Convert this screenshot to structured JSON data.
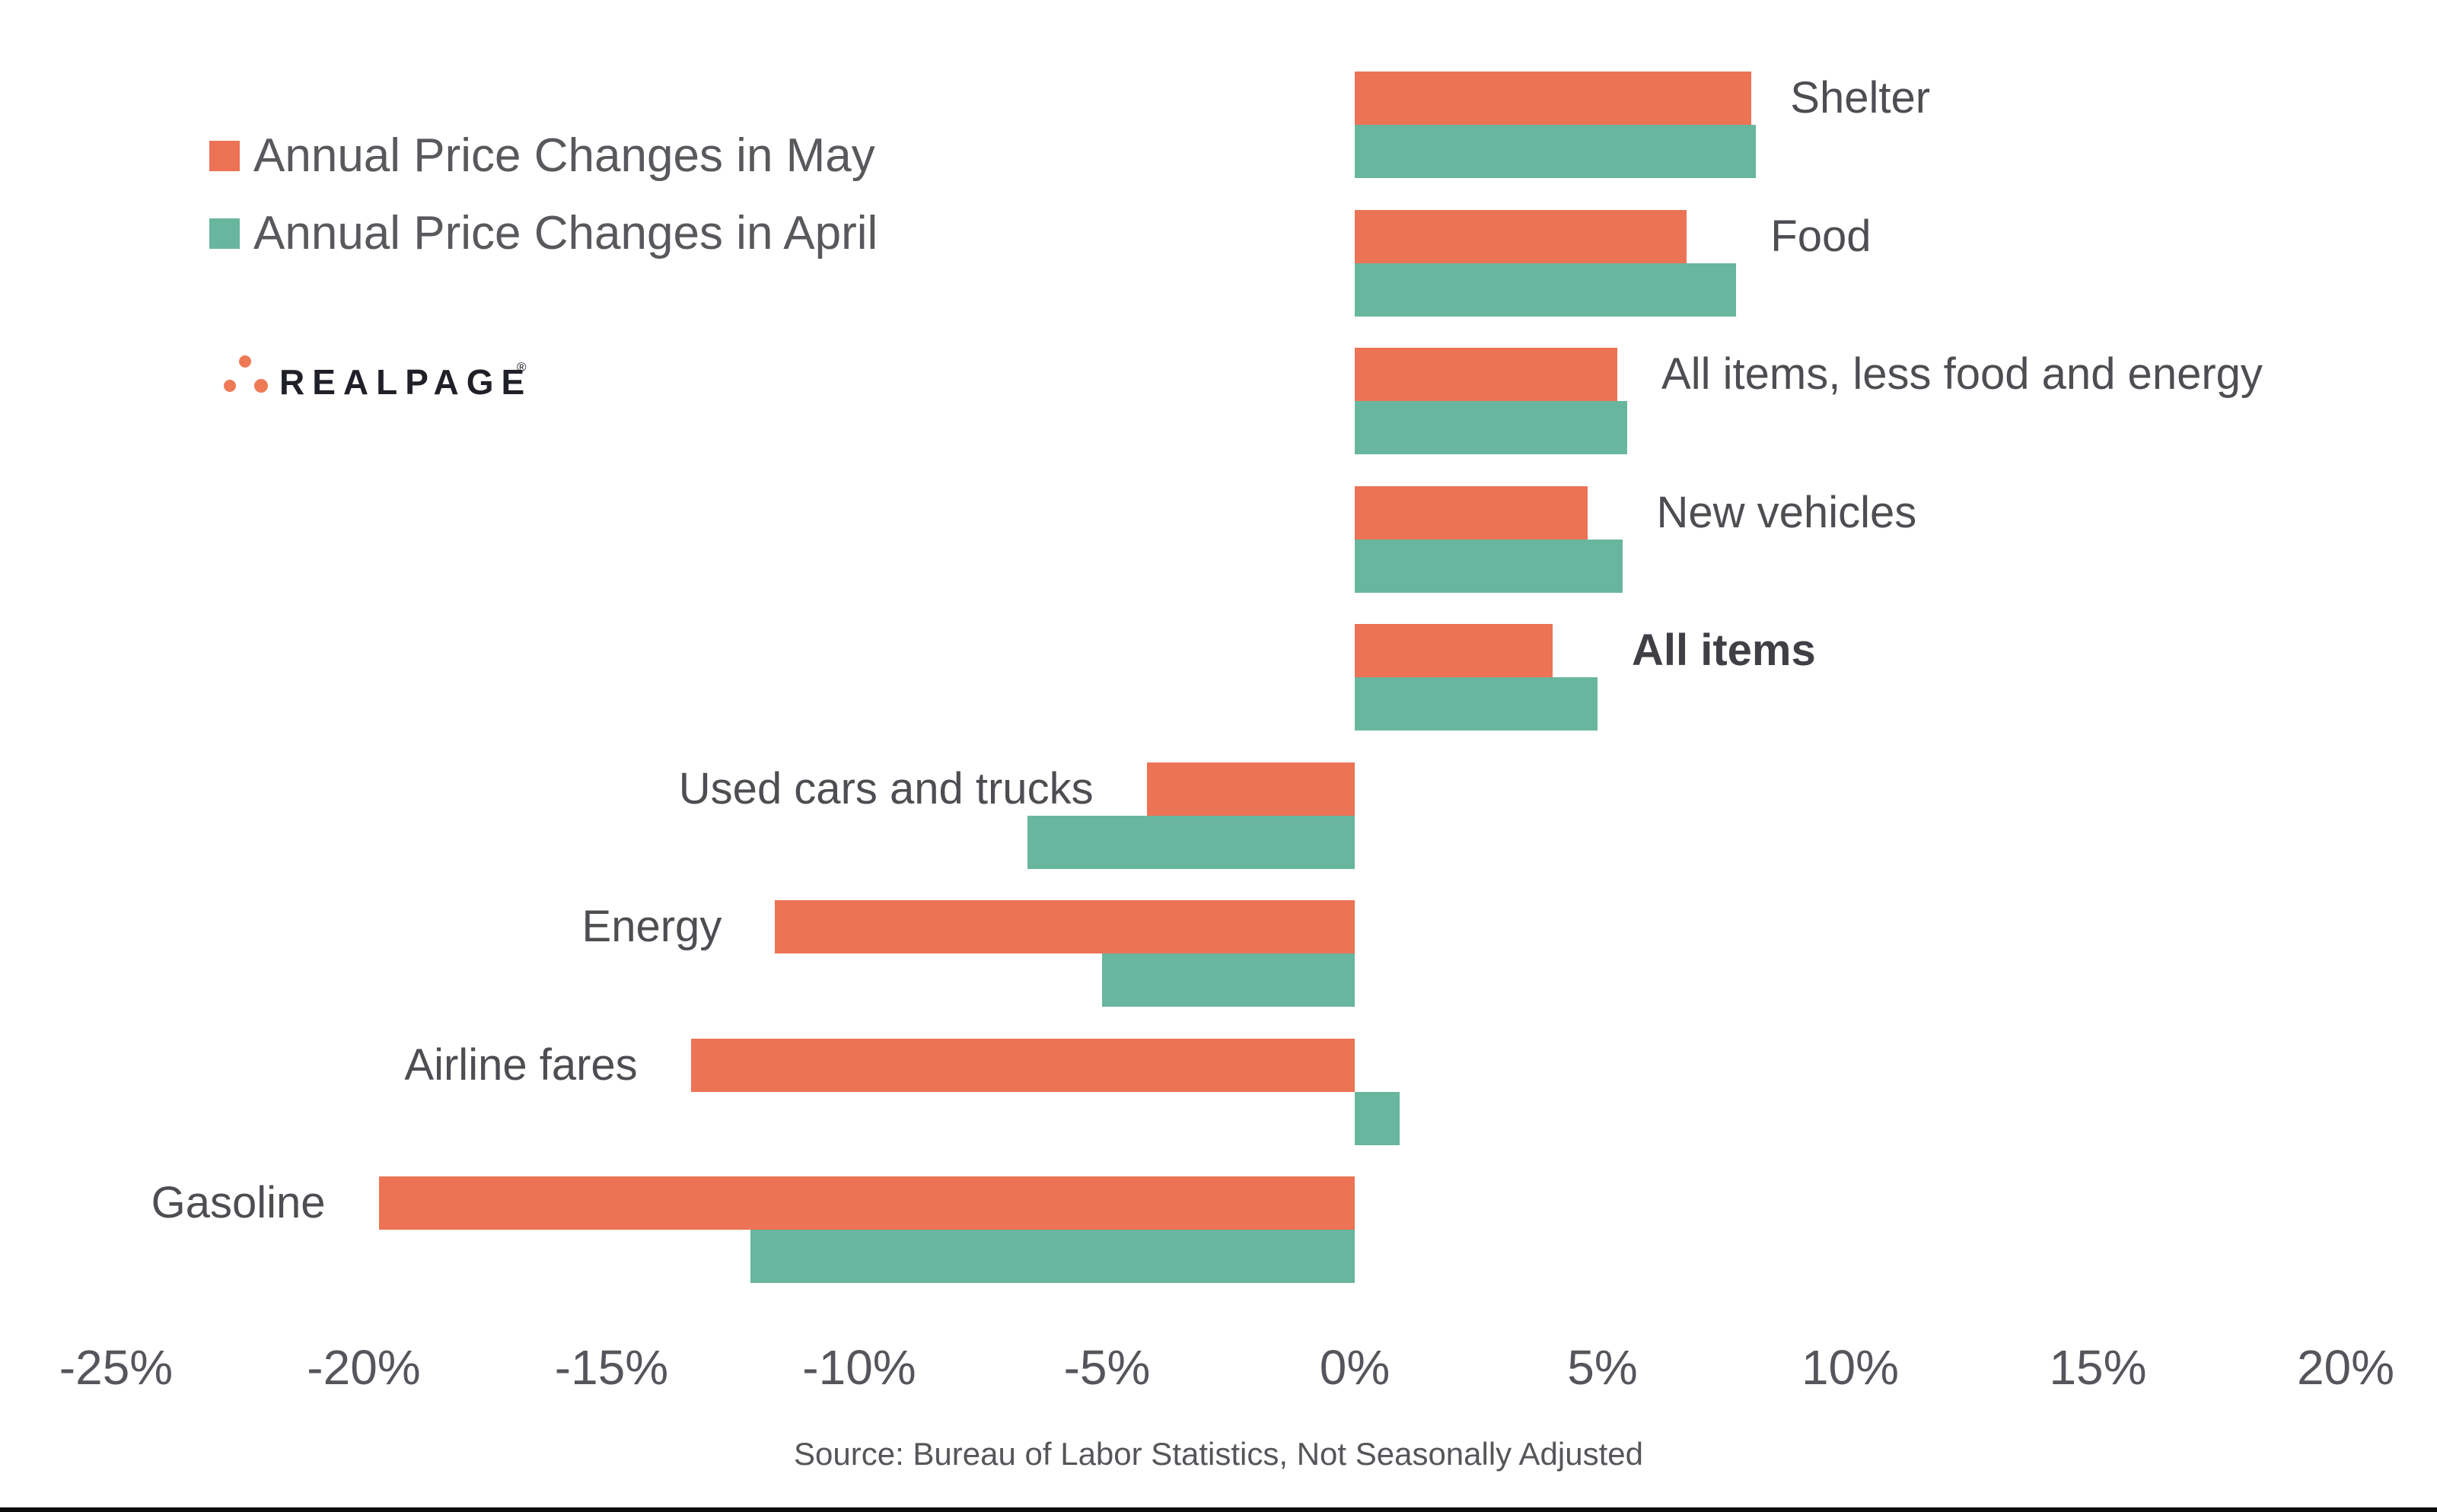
{
  "legend": {
    "items": [
      {
        "label": "Annual Price Changes in May",
        "color": "#EC7355"
      },
      {
        "label": "Annual Price Changes in April",
        "color": "#68B69E"
      }
    ]
  },
  "logo": {
    "text": "REALPAGE",
    "registered_mark": "®",
    "dot_color": "#ED7A55",
    "text_color": "#1F2028"
  },
  "source_note": "Source: Bureau of Labor Statistics, Not Seasonally Adjusted",
  "chart_data": {
    "type": "bar",
    "orientation": "horizontal",
    "title": "",
    "xlabel": "",
    "ylabel": "",
    "xlim": [
      -25,
      20
    ],
    "gridlines": false,
    "legend_position": "top-left",
    "categories": [
      "Shelter",
      "Food",
      "All items, less food and energy",
      "New vehicles",
      "All items",
      "Used cars and trucks",
      "Energy",
      "Airline fares",
      "Gasoline"
    ],
    "bold_category": "All items",
    "series": [
      {
        "name": "Annual Price Changes in May",
        "color": "#EC7355",
        "values": [
          8.0,
          6.7,
          5.3,
          4.7,
          4.0,
          -4.2,
          -11.7,
          -13.4,
          -19.7
        ]
      },
      {
        "name": "Annual Price Changes in April",
        "color": "#68B69E",
        "values": [
          8.1,
          7.7,
          5.5,
          5.4,
          4.9,
          -6.6,
          -5.1,
          0.9,
          -12.2
        ]
      }
    ],
    "x_tick_labels": [
      "-25%",
      "-20%",
      "-15%",
      "-10%",
      "-5%",
      "0%",
      "5%",
      "10%",
      "15%",
      "20%"
    ],
    "x_tick_values": [
      -25,
      -20,
      -15,
      -10,
      -5,
      0,
      5,
      10,
      15,
      20
    ]
  }
}
